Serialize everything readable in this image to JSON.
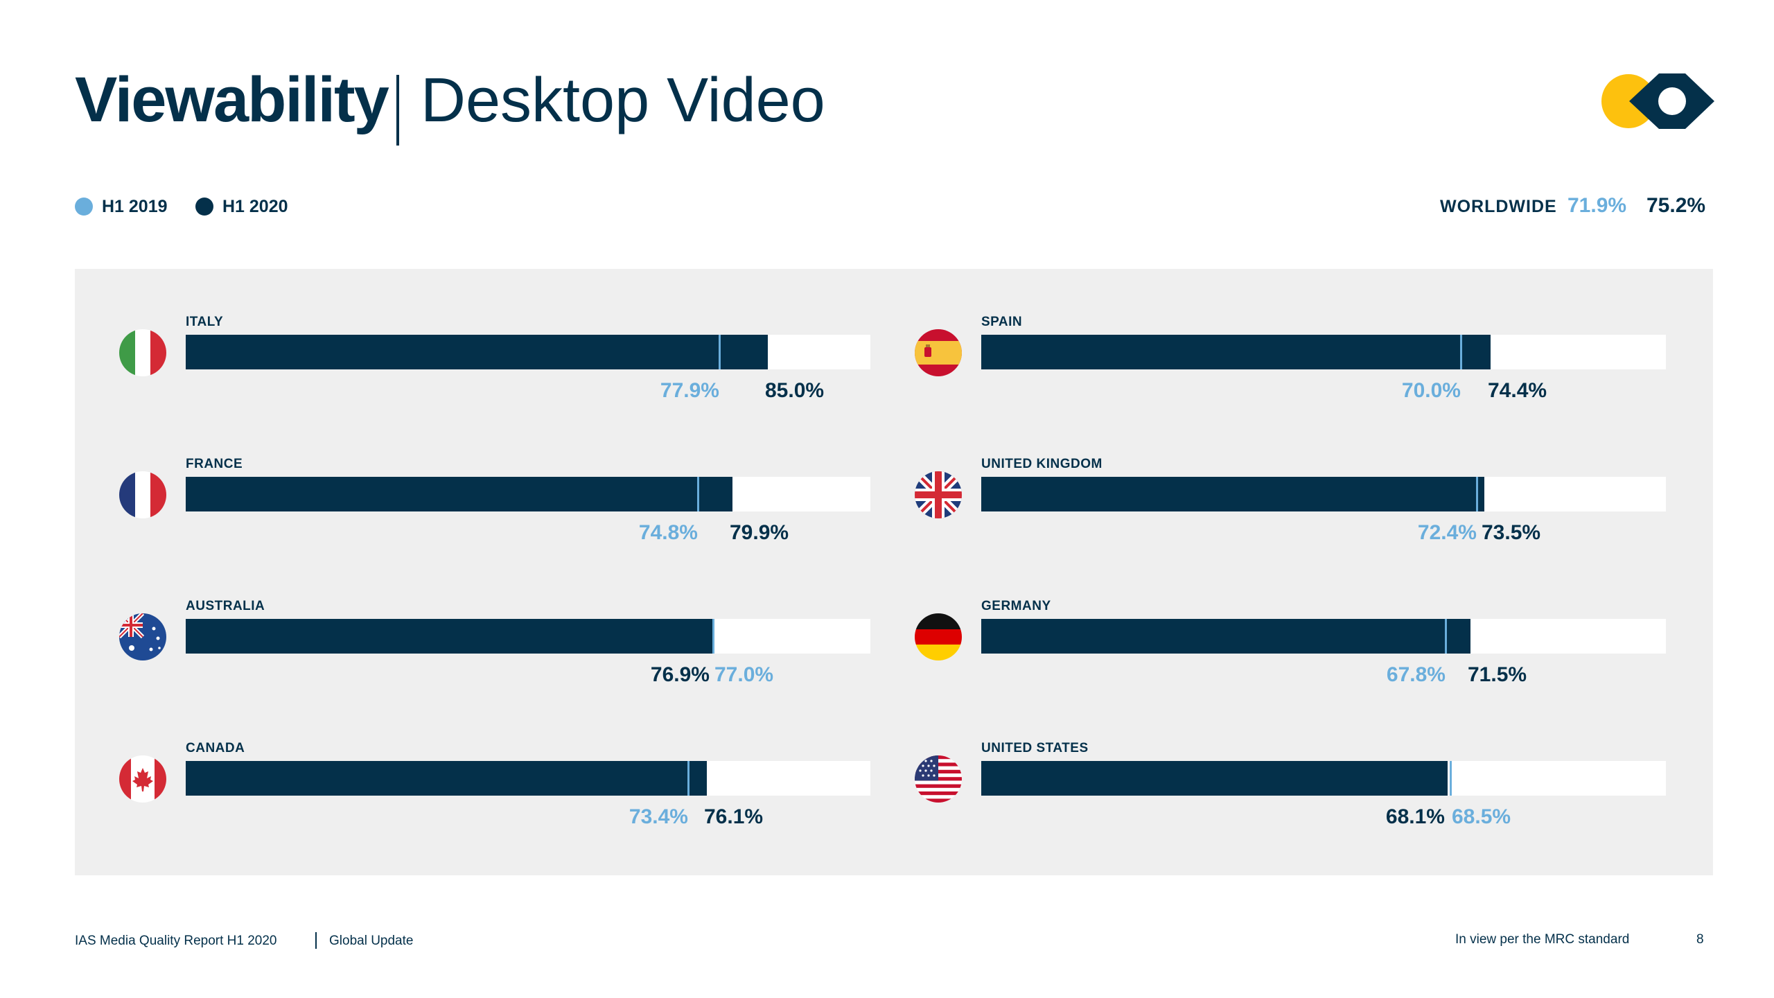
{
  "header": {
    "title_bold": "Viewability",
    "title_light": "Desktop Video"
  },
  "legend": [
    {
      "label": "H1 2019",
      "color": "#6aaedc"
    },
    {
      "label": "H1 2020",
      "color": "#04304a"
    }
  ],
  "worldwide": {
    "label": "WORLDWIDE",
    "h1_2019": "71.9%",
    "h1_2020": "75.2%"
  },
  "chart_data": {
    "type": "bar",
    "title": "Viewability | Desktop Video",
    "categories": [
      "ITALY",
      "FRANCE",
      "AUSTRALIA",
      "CANADA",
      "SPAIN",
      "UNITED KINGDOM",
      "GERMANY",
      "UNITED STATES"
    ],
    "series": [
      {
        "name": "H1 2019",
        "color": "#6aaedc",
        "values": [
          77.9,
          74.8,
          77.0,
          73.4,
          70.0,
          72.4,
          67.8,
          68.5
        ]
      },
      {
        "name": "H1 2020",
        "color": "#04304a",
        "values": [
          85.0,
          79.9,
          76.9,
          76.1,
          74.4,
          73.5,
          71.5,
          68.1
        ]
      }
    ],
    "labels_2019": [
      "77.9%",
      "74.8%",
      "77.0%",
      "73.4%",
      "70.0%",
      "72.4%",
      "67.8%",
      "68.5%"
    ],
    "labels_2020": [
      "85.0%",
      "79.9%",
      "76.9%",
      "76.1%",
      "74.4%",
      "73.5%",
      "71.5%",
      "68.1%"
    ],
    "flags": [
      "italy-flag-icon",
      "france-flag-icon",
      "australia-flag-icon",
      "canada-flag-icon",
      "spain-flag-icon",
      "uk-flag-icon",
      "germany-flag-icon",
      "usa-flag-icon"
    ],
    "xlim": [
      0,
      100
    ],
    "grid": false,
    "legend_placement": "top-left"
  },
  "brand": {
    "logo": "ias-eye-logo",
    "accent": "#fdc10e",
    "navy": "#04304a"
  },
  "footer": {
    "report": "IAS Media Quality Report H1 2020",
    "section": "Global Update",
    "note": "In view per the MRC standard",
    "page": "8"
  }
}
